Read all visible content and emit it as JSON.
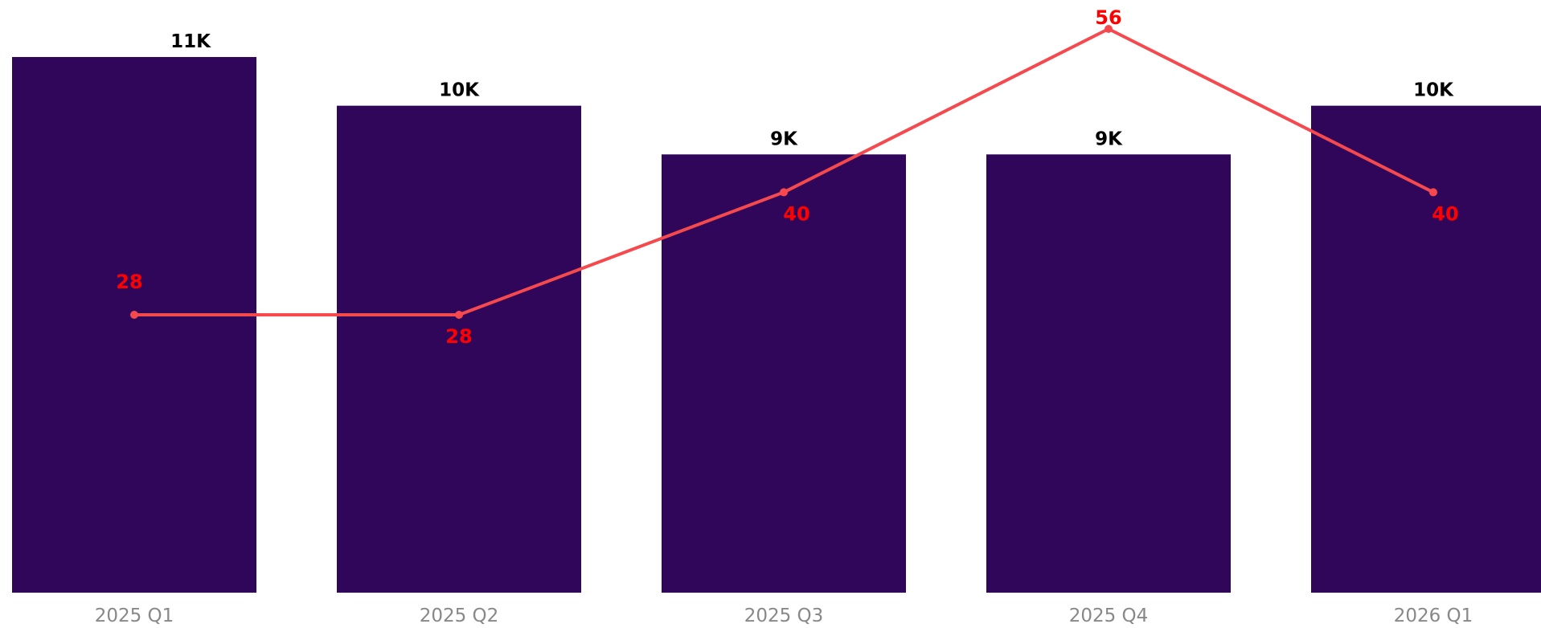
{
  "chart_data": {
    "type": "bar",
    "categories": [
      "2025 Q1",
      "2025 Q2",
      "2025 Q3",
      "2025 Q4",
      "2026 Q1"
    ],
    "series": [
      {
        "type": "bar",
        "values": [
          11000,
          10000,
          9000,
          9000,
          10000
        ],
        "labels": [
          "11K",
          "10K",
          "9K",
          "9K",
          "10K"
        ]
      },
      {
        "type": "line",
        "values": [
          28,
          28,
          40,
          56,
          40
        ],
        "labels": [
          "28",
          "28",
          "40",
          "56",
          "40"
        ]
      }
    ],
    "title": "",
    "xlabel": "",
    "ylabel": "",
    "ylim": [
      0,
      11800
    ],
    "y2lim": [
      0,
      58
    ],
    "grid": false,
    "legend": "none",
    "colors": {
      "bar": "#30065b",
      "line": "#f5494d",
      "line_label": "#ff0000",
      "bar_label": "#000000",
      "tick_label": "#888888"
    }
  }
}
